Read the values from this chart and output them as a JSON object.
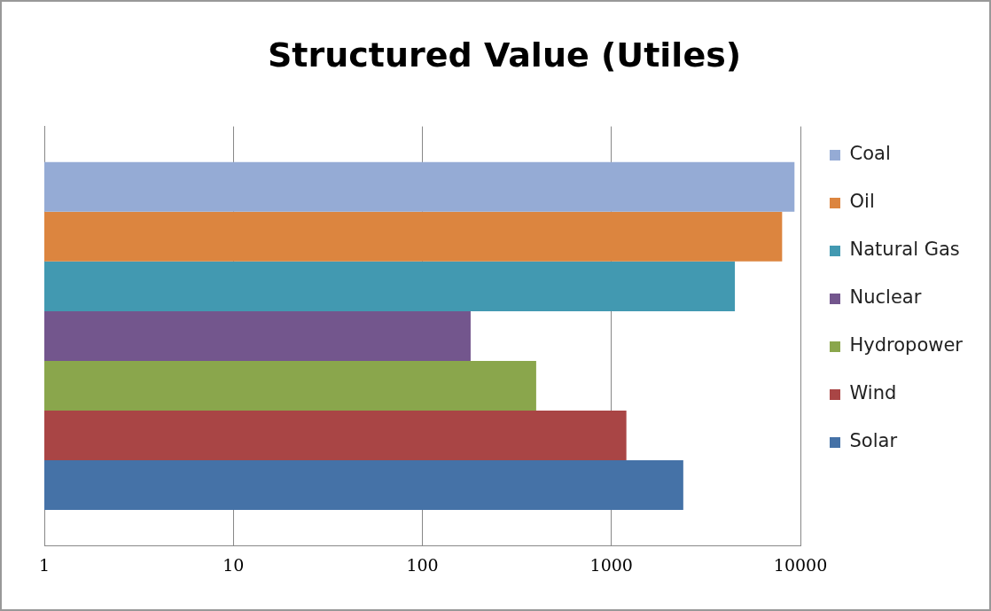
{
  "chart_data": {
    "type": "bar",
    "title": "Structured Value (Utiles)",
    "orientation": "horizontal",
    "log": "x",
    "categories": [
      null
    ],
    "series": [
      {
        "name": "Coal",
        "color": "#95abd5",
        "values": [
          9300
        ]
      },
      {
        "name": "Oil",
        "color": "#dc853f",
        "values": [
          8000
        ]
      },
      {
        "name": "Natural Gas",
        "color": "#4299b1",
        "values": [
          4500
        ]
      },
      {
        "name": "Nuclear",
        "color": "#73568d",
        "values": [
          180
        ]
      },
      {
        "name": "Hydropower",
        "color": "#8aa64c",
        "values": [
          400
        ]
      },
      {
        "name": "Wind",
        "color": "#a94545",
        "values": [
          1200
        ]
      },
      {
        "name": "Solar",
        "color": "#4572a7",
        "values": [
          2400
        ]
      }
    ],
    "xlim": [
      1,
      10000
    ],
    "xticks": [
      1,
      10,
      100,
      1000,
      10000
    ],
    "grid": "x",
    "legend": "right",
    "tick_labels": "x"
  }
}
